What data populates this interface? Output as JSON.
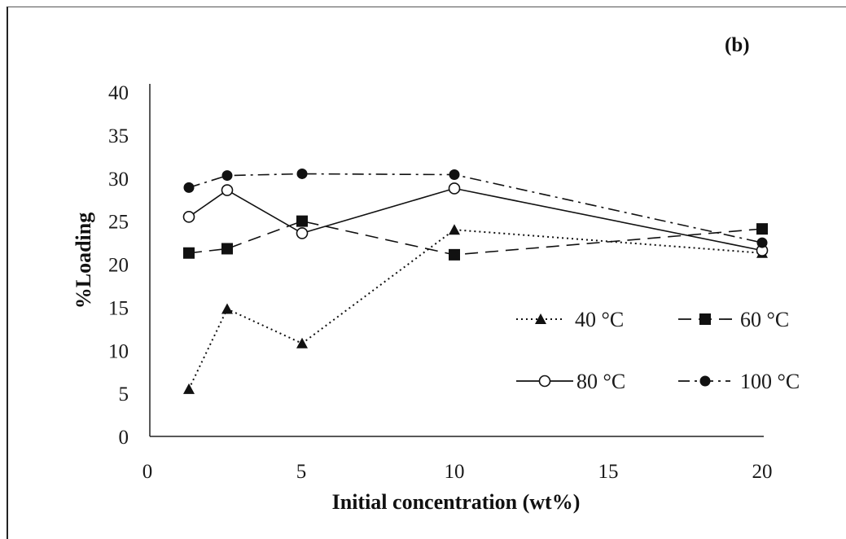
{
  "chart_data": {
    "type": "line",
    "panel_label": "(b)",
    "xlabel": "Initial concentration (wt%)",
    "ylabel": "%Loading",
    "x_categories": [
      "0",
      "5",
      "10",
      "15",
      "20"
    ],
    "y_ticks": [
      0,
      5,
      10,
      15,
      20,
      25,
      30,
      35,
      40
    ],
    "ylim": [
      0,
      40
    ],
    "grid": false,
    "legend_position": "lower-right",
    "series": [
      {
        "name": "40 °C",
        "marker": "triangle",
        "line_style": "dotted",
        "x": [
          1.25,
          2.5,
          5,
          10,
          20
        ],
        "y": [
          5.5,
          14.8,
          10.8,
          24,
          21.3
        ]
      },
      {
        "name": "60 °C",
        "marker": "square",
        "line_style": "dashed",
        "x": [
          1.25,
          2.5,
          5,
          10,
          20
        ],
        "y": [
          21.3,
          21.8,
          25,
          21.1,
          24.1
        ]
      },
      {
        "name": "80 °C",
        "marker": "open-circle",
        "line_style": "solid",
        "x": [
          1.25,
          2.5,
          5,
          10,
          20
        ],
        "y": [
          25.5,
          28.6,
          23.6,
          28.8,
          21.6
        ]
      },
      {
        "name": "100 °C",
        "marker": "filled-circle",
        "line_style": "dash-dot",
        "x": [
          1.25,
          2.5,
          5,
          10,
          20
        ],
        "y": [
          28.9,
          30.3,
          30.5,
          30.4,
          22.5
        ]
      }
    ]
  }
}
